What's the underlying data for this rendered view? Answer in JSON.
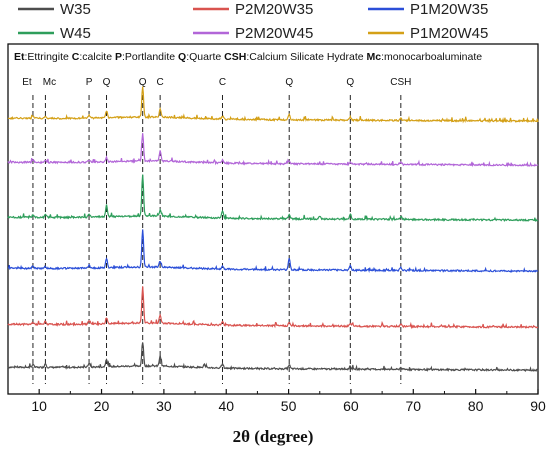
{
  "chart_data": {
    "type": "line",
    "xlabel": "2θ (degree)",
    "ylabel": "",
    "xlim": [
      5,
      90
    ],
    "x_ticks": [
      "10",
      "20",
      "30",
      "40",
      "50",
      "60",
      "70",
      "80",
      "90"
    ],
    "grid": false,
    "legend_position": "top",
    "legend": [
      "W35",
      "P2M20W35",
      "P1M20W35",
      "W45",
      "P2M20W45",
      "P1M20W45"
    ],
    "annotation_parts": [
      {
        "text": "Et",
        "bold": true
      },
      {
        "text": ":Ettringite ",
        "bold": false
      },
      {
        "text": "C",
        "bold": true
      },
      {
        "text": ":calcite ",
        "bold": false
      },
      {
        "text": "P",
        "bold": true
      },
      {
        "text": ":Portlandite ",
        "bold": false
      },
      {
        "text": "Q",
        "bold": true
      },
      {
        "text": ":Quarte ",
        "bold": false
      },
      {
        "text": "CSH",
        "bold": true
      },
      {
        "text": ":Calcium Silicate Hydrate ",
        "bold": false
      },
      {
        "text": "Mc",
        "bold": true
      },
      {
        "text": ":monocarboaluminate",
        "bold": false
      }
    ],
    "peak_markers": [
      {
        "label": "Et",
        "x": 9.0
      },
      {
        "label": "Mc",
        "x": 11.0
      },
      {
        "label": "P",
        "x": 18.0
      },
      {
        "label": "Q",
        "x": 20.8
      },
      {
        "label": "Q",
        "x": 26.6
      },
      {
        "label": "C",
        "x": 29.4
      },
      {
        "label": "C",
        "x": 39.4
      },
      {
        "label": "Q",
        "x": 50.1
      },
      {
        "label": "Q",
        "x": 59.9
      },
      {
        "label": "CSH",
        "x": 68.0
      }
    ],
    "series": [
      {
        "name": "W35",
        "color": "#4d4d4d",
        "peaks": [
          [
            9.0,
            3
          ],
          [
            11.0,
            4
          ],
          [
            18.0,
            4
          ],
          [
            20.8,
            8
          ],
          [
            26.6,
            24
          ],
          [
            29.4,
            10
          ],
          [
            36.5,
            3
          ],
          [
            39.4,
            4
          ],
          [
            50.1,
            4
          ],
          [
            59.9,
            3
          ],
          [
            68.0,
            2
          ]
        ]
      },
      {
        "name": "P2M20W35",
        "color": "#d9534f",
        "peaks": [
          [
            9.0,
            2
          ],
          [
            11.0,
            3
          ],
          [
            18.0,
            3
          ],
          [
            20.8,
            6
          ],
          [
            26.6,
            36
          ],
          [
            29.4,
            8
          ],
          [
            39.4,
            3
          ],
          [
            50.1,
            3
          ],
          [
            59.9,
            2
          ],
          [
            68.0,
            2
          ]
        ]
      },
      {
        "name": "P1M20W35",
        "color": "#2b4fd8",
        "peaks": [
          [
            9.0,
            2
          ],
          [
            11.0,
            2
          ],
          [
            18.0,
            3
          ],
          [
            20.8,
            9
          ],
          [
            26.6,
            38
          ],
          [
            29.4,
            6
          ],
          [
            39.4,
            3
          ],
          [
            50.1,
            12
          ],
          [
            59.9,
            5
          ],
          [
            68.0,
            3
          ]
        ]
      },
      {
        "name": "W45",
        "color": "#2e9e5b",
        "peaks": [
          [
            9.0,
            2
          ],
          [
            11.0,
            3
          ],
          [
            18.0,
            3
          ],
          [
            20.8,
            12
          ],
          [
            26.6,
            42
          ],
          [
            29.4,
            6
          ],
          [
            39.4,
            7
          ],
          [
            50.1,
            4
          ],
          [
            55.0,
            3
          ],
          [
            59.9,
            5
          ],
          [
            68.0,
            3
          ]
        ]
      },
      {
        "name": "P2M20W45",
        "color": "#b266d8",
        "peaks": [
          [
            9.0,
            2
          ],
          [
            11.0,
            2
          ],
          [
            18.0,
            2
          ],
          [
            20.8,
            4
          ],
          [
            26.6,
            28
          ],
          [
            29.4,
            10
          ],
          [
            39.4,
            3
          ],
          [
            50.1,
            3
          ],
          [
            59.9,
            2
          ],
          [
            68.0,
            2
          ]
        ]
      },
      {
        "name": "P1M20W45",
        "color": "#d4a017",
        "peaks": [
          [
            9.0,
            2
          ],
          [
            11.0,
            2
          ],
          [
            18.0,
            3
          ],
          [
            20.8,
            7
          ],
          [
            26.6,
            30
          ],
          [
            29.4,
            8
          ],
          [
            39.4,
            3
          ],
          [
            50.1,
            6
          ],
          [
            59.9,
            3
          ],
          [
            68.0,
            2
          ]
        ]
      }
    ]
  }
}
